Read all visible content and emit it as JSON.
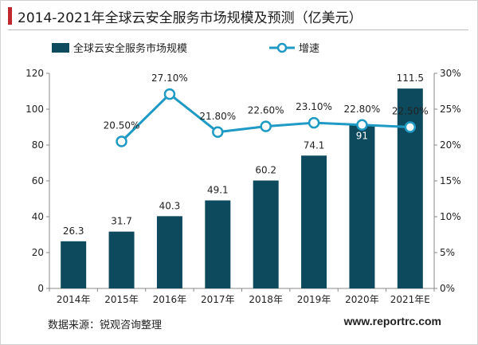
{
  "header": {
    "title": "2014-2021年全球云安全服务市场规模及预测（亿美元）"
  },
  "footer": {
    "source": "数据来源：锐观咨询整理",
    "site": "www.reportrc.com"
  },
  "colors": {
    "bar": "#0e4a5e",
    "line": "#1f9ac4",
    "accent": "#c0282d"
  },
  "chart_data": {
    "type": "bar",
    "categories": [
      "2014年",
      "2015年",
      "2016年",
      "2017年",
      "2018年",
      "2019年",
      "2020年",
      "2021年E"
    ],
    "series": [
      {
        "name": "全球云安全服务市场规模",
        "type": "bar",
        "axis": "left",
        "values": [
          26.3,
          31.7,
          40.3,
          49.1,
          60.2,
          74.1,
          91,
          111.5
        ],
        "labels": [
          "26.3",
          "31.7",
          "40.3",
          "49.1",
          "60.2",
          "74.1",
          "91",
          "111.5"
        ]
      },
      {
        "name": "增速",
        "type": "line",
        "axis": "right",
        "values": [
          null,
          20.5,
          27.1,
          21.8,
          22.6,
          23.1,
          22.8,
          22.5
        ],
        "labels": [
          null,
          "20.50%",
          "27.10%",
          "21.80%",
          "22.60%",
          "23.10%",
          "22.80%",
          "22.50%"
        ]
      }
    ],
    "ylim_left": [
      0,
      120
    ],
    "yticks_left": [
      "0",
      "20",
      "40",
      "60",
      "80",
      "100",
      "120"
    ],
    "ylim_right": [
      0,
      30
    ],
    "yticks_right": [
      "0%",
      "5%",
      "10%",
      "15%",
      "20%",
      "25%",
      "30%"
    ],
    "legend_position": "top-left",
    "grid": false
  }
}
